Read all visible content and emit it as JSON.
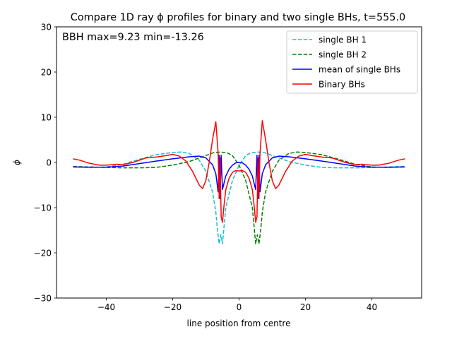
{
  "chart_data": {
    "type": "line",
    "title": "Compare 1D ray ϕ profiles for binary and two single BHs, t=555.0",
    "xlabel": "line position from centre",
    "ylabel": "ϕ",
    "xlim": [
      -55,
      55
    ],
    "ylim": [
      -30,
      30
    ],
    "xticks": [
      -40,
      -20,
      0,
      20,
      40
    ],
    "xtick_labels": [
      "−40",
      "−20",
      "0",
      "20",
      "40"
    ],
    "yticks": [
      -30,
      -20,
      -10,
      0,
      10,
      20,
      30
    ],
    "ytick_labels": [
      "−30",
      "−20",
      "−10",
      "0",
      "10",
      "20",
      "30"
    ],
    "grid": false,
    "legend_position": "top-right",
    "annotation": "BBH max=9.23 min=-13.26",
    "series": [
      {
        "name": "single BH 1",
        "color": "#17becf",
        "dash": "dashed",
        "x": [
          -50,
          -45,
          -40,
          -35,
          -30,
          -25,
          -20,
          -17.5,
          -15,
          -12,
          -10,
          -8,
          -7,
          -6.5,
          -6.0,
          -5.5,
          -5.0,
          -4,
          -2,
          0,
          2,
          3.5,
          5.5,
          7.5,
          9,
          12,
          15,
          20,
          25,
          30,
          35,
          40,
          45,
          50
        ],
        "y": [
          -1.0,
          -1.1,
          -1.0,
          -0.4,
          0.7,
          1.7,
          2.2,
          2.3,
          2.0,
          0.5,
          -2.0,
          -6.5,
          -11.0,
          -15.0,
          -18.0,
          -16.0,
          -18.0,
          -10.0,
          -4.0,
          -0.6,
          1.5,
          2.1,
          2.3,
          2.2,
          1.8,
          1.0,
          0.2,
          -0.6,
          -1.1,
          -1.2,
          -1.2,
          -1.1,
          -1.0,
          -0.9
        ]
      },
      {
        "name": "single BH 2",
        "color": "#008000",
        "dash": "dashed",
        "x": [
          -50,
          -45,
          -40,
          -35,
          -30,
          -25,
          -20,
          -15,
          -12,
          -9,
          -7.5,
          -5.5,
          -3.5,
          -2,
          0,
          2,
          4,
          5,
          5.5,
          6.0,
          6.5,
          7,
          8,
          10,
          12,
          15,
          17.5,
          20,
          25,
          30,
          35,
          40,
          45,
          50
        ],
        "y": [
          -0.9,
          -1.0,
          -1.1,
          -1.2,
          -1.2,
          -1.1,
          -0.6,
          0.2,
          1.0,
          1.8,
          2.2,
          2.3,
          2.1,
          1.5,
          -0.6,
          -4.0,
          -10.0,
          -18.0,
          -16.0,
          -18.0,
          -15.0,
          -11.0,
          -6.5,
          -2.0,
          0.5,
          2.0,
          2.3,
          2.2,
          1.7,
          0.7,
          -0.4,
          -1.0,
          -1.1,
          -1.0
        ]
      },
      {
        "name": "mean of single BHs",
        "color": "#0000ff",
        "dash": "solid",
        "x": [
          -50,
          -45,
          -40,
          -35,
          -30,
          -25,
          -20,
          -15,
          -12,
          -10,
          -8,
          -7,
          -6.3,
          -6.0,
          -5.7,
          -5.4,
          -5.0,
          -4,
          -3,
          -2,
          -1,
          0,
          1,
          2,
          3,
          4,
          5.0,
          5.4,
          5.7,
          6.0,
          6.3,
          7,
          8,
          10,
          12,
          15,
          20,
          25,
          30,
          35,
          40,
          45,
          50
        ],
        "y": [
          -1.0,
          -1.05,
          -1.05,
          -0.8,
          -0.25,
          0.3,
          0.8,
          1.25,
          1.4,
          1.0,
          -0.5,
          -2.5,
          -6.5,
          1.6,
          -8.0,
          1.6,
          -6.0,
          -3.0,
          -1.5,
          -0.6,
          -0.1,
          0.0,
          -0.1,
          -0.6,
          -1.5,
          -3.0,
          -6.0,
          1.6,
          -8.0,
          1.6,
          -6.5,
          -2.5,
          -0.5,
          1.0,
          1.4,
          1.25,
          0.8,
          0.3,
          -0.25,
          -0.8,
          -1.05,
          -1.05,
          -1.0
        ]
      },
      {
        "name": "Binary BHs",
        "color": "#ff0000",
        "dash": "solid",
        "x": [
          -50,
          -48,
          -45,
          -42,
          -40,
          -37,
          -35,
          -32,
          -30,
          -28,
          -25,
          -22,
          -20,
          -18,
          -16,
          -14,
          -12,
          -11,
          -10,
          -9,
          -8,
          -7,
          -6.3,
          -6.0,
          -5.7,
          -5.4,
          -5.0,
          -4.6,
          -4,
          -3,
          -2,
          -1,
          0,
          1,
          2,
          3,
          4,
          4.6,
          5.0,
          5.4,
          5.7,
          6.0,
          6.3,
          7,
          8,
          9,
          10,
          11,
          12,
          14,
          16,
          18,
          20,
          22,
          25,
          28,
          30,
          32,
          35,
          37,
          40,
          42,
          45,
          48,
          50
        ],
        "y": [
          0.8,
          0.5,
          -0.2,
          -0.6,
          -0.6,
          -0.4,
          -0.5,
          0.0,
          0.5,
          1.0,
          1.2,
          1.5,
          1.8,
          1.4,
          0.3,
          -2.0,
          -5.0,
          -5.8,
          -4.0,
          0.0,
          5.0,
          9.0,
          2.0,
          -8.0,
          1.0,
          -12.0,
          -13.26,
          -10.0,
          -6.0,
          -3.5,
          -2.2,
          -1.8,
          -1.9,
          -1.8,
          -2.2,
          -3.5,
          -6.0,
          -10.0,
          -13.26,
          -12.0,
          1.0,
          -8.0,
          2.0,
          9.23,
          5.0,
          0.0,
          -4.0,
          -5.8,
          -5.0,
          -2.0,
          0.3,
          1.4,
          1.8,
          1.5,
          1.2,
          1.0,
          0.5,
          0.0,
          -0.5,
          -0.4,
          -0.6,
          -0.6,
          -0.2,
          0.5,
          0.8
        ]
      }
    ]
  }
}
